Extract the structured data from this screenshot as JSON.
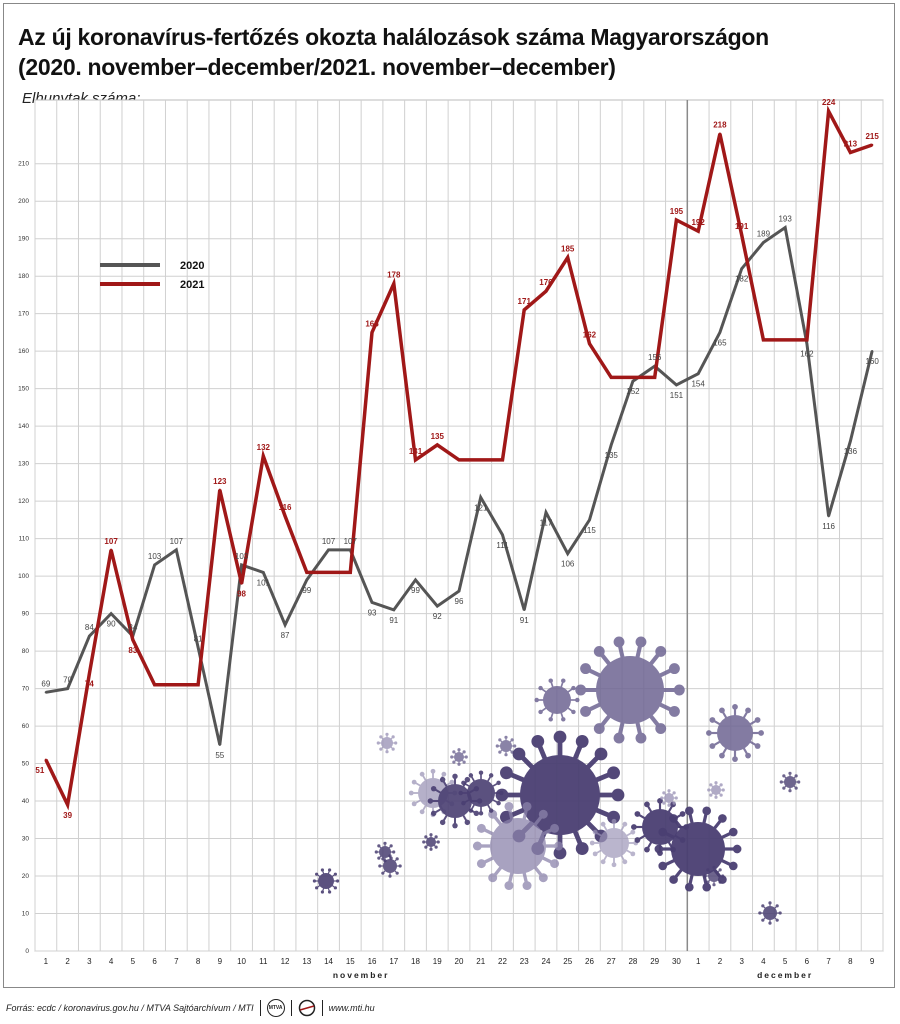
{
  "title_line1": "Az új koronavírus-fertőzés okozta halálozások száma Magyarországon",
  "title_line2": "(2020. november–december/2021. november–december)",
  "y_axis_label": "Elhunytak száma:",
  "footer": {
    "source": "Forrás: ecdc / koronavirus.gov.hu / MTVA Sajtóarchívum / MTI",
    "logo1": "MTVA",
    "url": "www.mti.hu"
  },
  "colors": {
    "s2020": "#555555",
    "s2021": "#a01818",
    "grid": "#d0d0d0",
    "virus": "#4a3f72"
  },
  "chart_data": {
    "type": "line",
    "x_labels": [
      "1",
      "2",
      "3",
      "4",
      "5",
      "6",
      "7",
      "8",
      "9",
      "10",
      "11",
      "12",
      "13",
      "14",
      "15",
      "16",
      "17",
      "18",
      "19",
      "20",
      "21",
      "22",
      "23",
      "24",
      "25",
      "26",
      "27",
      "28",
      "29",
      "30",
      "1",
      "2",
      "3",
      "4",
      "5",
      "6",
      "7",
      "8",
      "9"
    ],
    "month_labels": [
      {
        "label": "november",
        "start": 0,
        "end": 29
      },
      {
        "label": "december",
        "start": 30,
        "end": 38
      }
    ],
    "y_ticks": [
      0,
      10,
      20,
      30,
      40,
      50,
      60,
      70,
      80,
      90,
      100,
      110,
      120,
      130,
      140,
      150,
      160,
      170,
      180,
      190,
      200,
      210
    ],
    "ylim": [
      0,
      227
    ],
    "grid": true,
    "legend_position": "upper-left",
    "series": [
      {
        "name": "2020",
        "values": [
          69,
          70,
          84,
          90,
          84,
          103,
          107,
          81,
          55,
          103,
          101,
          87,
          99,
          107,
          107,
          93,
          91,
          99,
          92,
          96,
          121,
          111,
          91,
          117,
          106,
          115,
          135,
          152,
          156,
          151,
          154,
          165,
          182,
          189,
          193,
          162,
          116,
          136,
          160
        ],
        "labels": [
          "69",
          "70",
          "84",
          "90",
          "84",
          "103",
          "107",
          "81",
          "55",
          "103",
          "101",
          "87",
          "99",
          "107",
          "107",
          "93",
          "91",
          "99",
          "92",
          "96",
          "121",
          "111",
          "91",
          "117",
          "106",
          "115",
          "135",
          "152",
          "156",
          "151",
          "154",
          "165",
          "182",
          "189",
          "193",
          "162",
          "116",
          "136",
          "160"
        ]
      },
      {
        "name": "2021",
        "values": [
          51,
          39,
          74,
          107,
          83,
          71,
          71,
          71,
          123,
          98,
          132,
          116,
          101,
          101,
          101,
          165,
          178,
          131,
          135,
          131,
          131,
          131,
          171,
          176,
          185,
          162,
          153,
          153,
          153,
          195,
          192,
          218,
          191,
          163,
          163,
          163,
          224,
          213,
          215
        ],
        "labels": [
          "51",
          "39",
          "74",
          "107",
          "83",
          "",
          "",
          "",
          "123",
          "98",
          "132",
          "116",
          "",
          "",
          "",
          "165",
          "178",
          "131",
          "135",
          "",
          "",
          "",
          "171",
          "176",
          "185",
          "162",
          "",
          "",
          "",
          "195",
          "192",
          "218",
          "191",
          "",
          "",
          "",
          "224",
          "213",
          "215"
        ]
      }
    ]
  }
}
